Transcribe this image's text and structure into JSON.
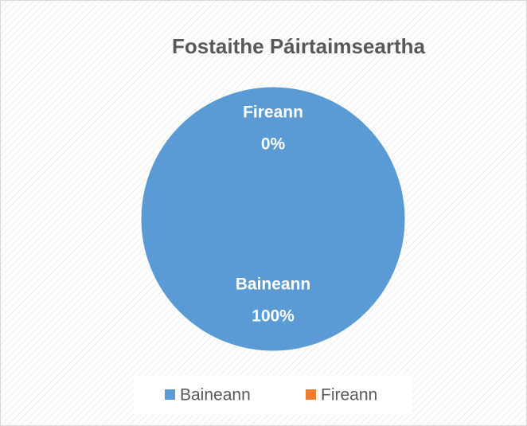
{
  "chart_data": {
    "type": "pie",
    "title": "Fostaithe Páirtaimseartha",
    "categories": [
      "Baineann",
      "Fireann"
    ],
    "values": [
      100,
      0
    ],
    "value_labels": [
      "100%",
      "0%"
    ],
    "colors": [
      "#5b9bd5",
      "#ed7d31"
    ],
    "legend": "bottom"
  }
}
